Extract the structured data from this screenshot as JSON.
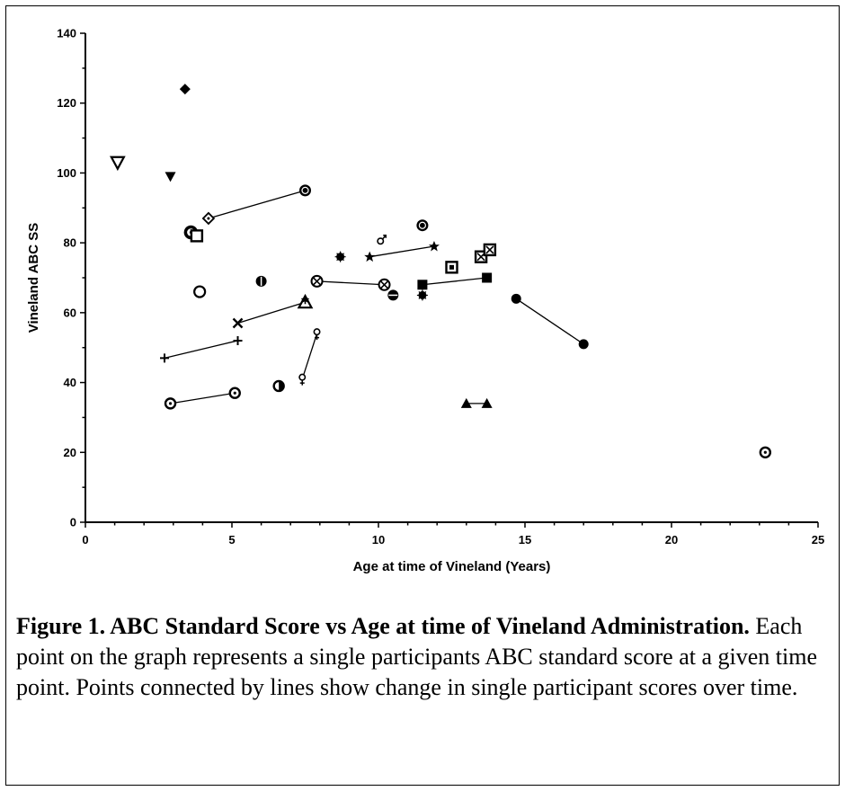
{
  "chart_data": {
    "type": "scatter",
    "xlabel": "Age at time of Vineland  (Years)",
    "ylabel": "Vineland ABC SS",
    "xlim": [
      0,
      25
    ],
    "ylim": [
      0,
      140
    ],
    "x_ticks": [
      "0",
      "5",
      "10",
      "15",
      "20",
      "25"
    ],
    "y_ticks": [
      "0",
      "20",
      "40",
      "60",
      "80",
      "100",
      "120",
      "140"
    ],
    "grid": false,
    "legend": "none",
    "series": [
      {
        "marker": "triangle-down-open",
        "points": [
          [
            1.1,
            103
          ]
        ]
      },
      {
        "marker": "triangle-down-filled",
        "points": [
          [
            2.9,
            99
          ]
        ]
      },
      {
        "marker": "diamond-filled",
        "points": [
          [
            3.4,
            124
          ]
        ]
      },
      {
        "marker": "circle-thick",
        "points": [
          [
            3.6,
            83
          ]
        ]
      },
      {
        "marker": "square-open",
        "points": [
          [
            3.8,
            82
          ]
        ]
      },
      {
        "marker": "circle-open",
        "points": [
          [
            3.9,
            66
          ]
        ]
      },
      {
        "marker": "diamond-open-dot",
        "points": [
          [
            4.2,
            87
          ]
        ]
      },
      {
        "marker": "circle-bullseye",
        "points": [
          [
            7.5,
            95
          ]
        ]
      },
      {
        "marker": "circle-bar",
        "points": [
          [
            6.0,
            69
          ]
        ]
      },
      {
        "marker": "x",
        "points": [
          [
            5.2,
            57
          ]
        ]
      },
      {
        "marker": "triangle-star",
        "points": [
          [
            7.5,
            63
          ]
        ]
      },
      {
        "marker": "plus",
        "points": [
          [
            2.7,
            47
          ],
          [
            5.2,
            52
          ]
        ]
      },
      {
        "marker": "circle-dot",
        "points": [
          [
            2.9,
            34
          ],
          [
            5.1,
            37
          ]
        ]
      },
      {
        "marker": "circle-half",
        "points": [
          [
            6.6,
            39
          ]
        ]
      },
      {
        "marker": "female",
        "points": [
          [
            7.4,
            41
          ],
          [
            7.9,
            54
          ]
        ]
      },
      {
        "marker": "circle-cross",
        "points": [
          [
            7.9,
            69
          ],
          [
            10.2,
            68
          ]
        ]
      },
      {
        "marker": "circle-bar-h",
        "points": [
          [
            10.5,
            65
          ]
        ]
      },
      {
        "marker": "asterisk-circle",
        "points": [
          [
            8.7,
            76
          ]
        ]
      },
      {
        "marker": "male",
        "points": [
          [
            10.1,
            81
          ]
        ]
      },
      {
        "marker": "star",
        "points": [
          [
            9.7,
            76
          ],
          [
            11.9,
            79
          ]
        ]
      },
      {
        "marker": "circle-bullseye",
        "points": [
          [
            11.5,
            85
          ]
        ]
      },
      {
        "marker": "asterisk-circle",
        "points": [
          [
            11.5,
            65
          ]
        ]
      },
      {
        "marker": "square-filled",
        "points": [
          [
            11.5,
            68
          ],
          [
            13.7,
            70
          ]
        ]
      },
      {
        "marker": "square-dot",
        "points": [
          [
            12.5,
            73
          ]
        ]
      },
      {
        "marker": "square-cross",
        "points": [
          [
            13.5,
            76
          ],
          [
            13.8,
            78
          ]
        ]
      },
      {
        "marker": "triangle-filled",
        "points": [
          [
            13.0,
            34
          ],
          [
            13.7,
            34
          ]
        ]
      },
      {
        "marker": "circle-filled",
        "points": [
          [
            14.7,
            64
          ],
          [
            17.0,
            51
          ]
        ]
      },
      {
        "marker": "circle-dot",
        "points": [
          [
            23.2,
            20
          ]
        ]
      }
    ],
    "connections": [
      [
        [
          4.2,
          87
        ],
        [
          7.5,
          95
        ]
      ],
      [
        [
          5.2,
          57
        ],
        [
          7.5,
          63
        ]
      ],
      [
        [
          2.7,
          47
        ],
        [
          5.2,
          52
        ]
      ],
      [
        [
          2.9,
          34
        ],
        [
          5.1,
          37
        ]
      ],
      [
        [
          7.4,
          41
        ],
        [
          7.9,
          54
        ]
      ],
      [
        [
          7.9,
          69
        ],
        [
          10.2,
          68
        ]
      ],
      [
        [
          9.7,
          76
        ],
        [
          11.9,
          79
        ]
      ],
      [
        [
          11.5,
          68
        ],
        [
          13.7,
          70
        ]
      ],
      [
        [
          13.5,
          76
        ],
        [
          13.8,
          78
        ]
      ],
      [
        [
          13.0,
          34
        ],
        [
          13.7,
          34
        ]
      ],
      [
        [
          14.7,
          64
        ],
        [
          17.0,
          51
        ]
      ]
    ]
  },
  "caption": {
    "title": "Figure 1. ABC Standard Score vs Age at time of Vineland Administration.",
    "body": " Each point on the graph represents a single participants ABC standard score at a given time point. Points connected by lines show change in single participant scores over time."
  }
}
